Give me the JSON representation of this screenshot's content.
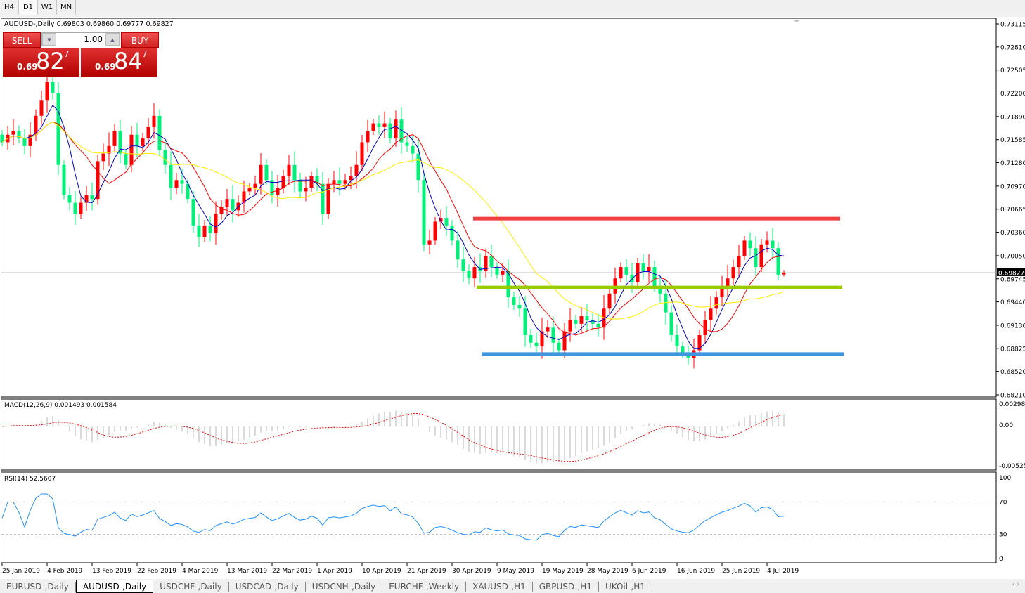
{
  "timeframes": [
    {
      "label": "H4",
      "active": false
    },
    {
      "label": "D1",
      "active": true
    },
    {
      "label": "W1",
      "active": false
    },
    {
      "label": "MN",
      "active": false
    }
  ],
  "chart_title": "AUDUSD-,Daily  0.69803 0.69860 0.69777 0.69827",
  "trade_panel": {
    "sell_label": "SELL",
    "buy_label": "BUY",
    "lot": "1.00",
    "sell_prefix": "0.69",
    "sell_main": "82",
    "sell_sup": "7",
    "buy_prefix": "0.69",
    "buy_main": "84",
    "buy_sup": "7"
  },
  "colors": {
    "bull": "#ff0000",
    "bear": "#00f07a",
    "ma_fast": "#0000c8",
    "ma_mid": "#ff0000",
    "ma_slow": "#ffee00",
    "resistance": "#f04040",
    "support_mid": "#99cc00",
    "support_low": "#3c96e0",
    "rsi": "#1e90ff",
    "macd_hist": "#b4b4b4",
    "macd_signal": "#ff0000"
  },
  "chart_data": {
    "type": "candlestick",
    "symbol": "AUDUSD-",
    "period": "Daily",
    "closes": [
      0.7155,
      0.7165,
      0.717,
      0.716,
      0.715,
      0.7165,
      0.719,
      0.721,
      0.7235,
      0.722,
      0.7125,
      0.7085,
      0.7075,
      0.706,
      0.7075,
      0.7085,
      0.708,
      0.713,
      0.714,
      0.715,
      0.717,
      0.714,
      0.7125,
      0.7165,
      0.715,
      0.716,
      0.7175,
      0.719,
      0.7145,
      0.7125,
      0.7095,
      0.7105,
      0.71,
      0.708,
      0.7045,
      0.703,
      0.7045,
      0.7035,
      0.706,
      0.707,
      0.708,
      0.7065,
      0.7075,
      0.709,
      0.7095,
      0.71,
      0.7125,
      0.7105,
      0.7085,
      0.7095,
      0.711,
      0.7125,
      0.7105,
      0.709,
      0.7095,
      0.711,
      0.71,
      0.706,
      0.71,
      0.7105,
      0.71,
      0.7105,
      0.711,
      0.7125,
      0.7155,
      0.717,
      0.718,
      0.7175,
      0.718,
      0.716,
      0.7185,
      0.7155,
      0.715,
      0.714,
      0.7105,
      0.702,
      0.7025,
      0.705,
      0.7055,
      0.7045,
      0.7025,
      0.7,
      0.6985,
      0.6975,
      0.699,
      0.6985,
      0.7005,
      0.699,
      0.698,
      0.6985,
      0.695,
      0.694,
      0.6935,
      0.69,
      0.689,
      0.6885,
      0.6905,
      0.691,
      0.689,
      0.688,
      0.6905,
      0.692,
      0.6915,
      0.6925,
      0.692,
      0.6915,
      0.691,
      0.6935,
      0.6955,
      0.6975,
      0.699,
      0.698,
      0.697,
      0.6995,
      0.6985,
      0.699,
      0.6965,
      0.6955,
      0.693,
      0.69,
      0.6885,
      0.6875,
      0.687,
      0.688,
      0.69,
      0.692,
      0.6935,
      0.695,
      0.6965,
      0.6975,
      0.699,
      0.7005,
      0.7025,
      0.7015,
      0.699,
      0.702,
      0.7025,
      0.7015,
      0.698,
      0.69827
    ],
    "last": {
      "open": 0.69803,
      "high": 0.6986,
      "low": 0.69777,
      "close": 0.69827
    },
    "current_price_label": "0.69827",
    "price_ticks": [
      "0.73115",
      "0.72810",
      "0.72505",
      "0.72200",
      "0.71890",
      "0.71585",
      "0.71280",
      "0.70970",
      "0.70665",
      "0.70360",
      "0.70050",
      "0.69745",
      "0.69440",
      "0.69130",
      "0.68825",
      "0.68520",
      "0.68210"
    ],
    "ylim": [
      0.6821,
      0.73115
    ],
    "date_ticks": [
      "25 Jan 2019",
      "4 Feb 2019",
      "13 Feb 2019",
      "22 Feb 2019",
      "4 Mar 2019",
      "13 Mar 2019",
      "22 Mar 2019",
      "1 Apr 2019",
      "10 Apr 2019",
      "21 Apr 2019",
      "30 Apr 2019",
      "9 May 2019",
      "19 May 2019",
      "28 May 2019",
      "6 Jun 2019",
      "16 Jun 2019",
      "25 Jun 2019",
      "4 Jul 2019"
    ],
    "horizontal_lines": [
      {
        "price": 0.7054,
        "color": "#f04040"
      },
      {
        "price": 0.6963,
        "color": "#99cc00"
      },
      {
        "price": 0.6875,
        "color": "#3c96e0"
      }
    ],
    "macd": {
      "label": "MACD(12,26,9) 0.001493 0.001584",
      "ticks": [
        "0.002984",
        "0.00",
        "-0.005250"
      ],
      "range": [
        -0.00525,
        0.002984
      ]
    },
    "rsi": {
      "label": "RSI(14) 52.5607",
      "ticks": [
        "100",
        "70",
        "30",
        "0"
      ],
      "levels": [
        70,
        30
      ]
    }
  },
  "symbol_tabs": [
    {
      "label": "EURUSD-,Daily",
      "active": false
    },
    {
      "label": "AUDUSD-,Daily",
      "active": true
    },
    {
      "label": "USDCHF-,Daily",
      "active": false
    },
    {
      "label": "USDCAD-,Daily",
      "active": false
    },
    {
      "label": "USDCNH-,Daily",
      "active": false
    },
    {
      "label": "EURCHF-,Weekly",
      "active": false
    },
    {
      "label": "XAUUSD-,H1",
      "active": false
    },
    {
      "label": "GBPUSD-,H1",
      "active": false
    },
    {
      "label": "UKOil-,H1",
      "active": false
    }
  ],
  "scroll_arrows": "‹  ›"
}
